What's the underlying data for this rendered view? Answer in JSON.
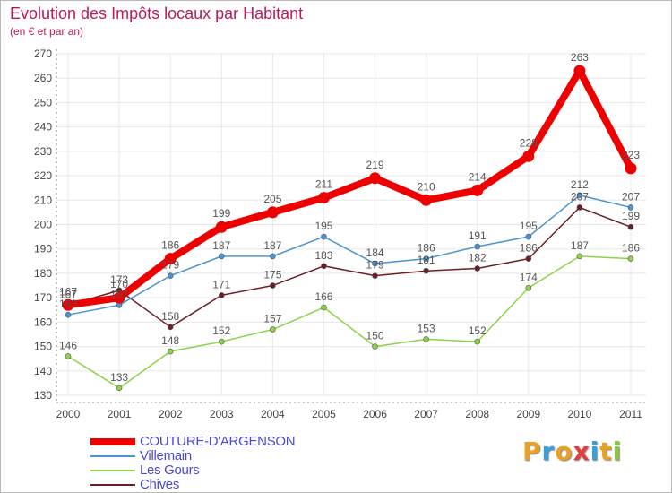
{
  "title": "Evolution des Impôts locaux par Habitant",
  "subtitle": "(en € et par an)",
  "logo": {
    "letters": [
      "P",
      "r",
      "o",
      "x",
      "i",
      "t",
      "i"
    ],
    "colors": [
      "#e8a025",
      "#3aa0dc",
      "#e8a025",
      "#e83d3d",
      "#3aa0dc",
      "#e8a025",
      "#8cc63e"
    ]
  },
  "chart_data": {
    "type": "line",
    "x": [
      2000,
      2001,
      2002,
      2003,
      2004,
      2005,
      2006,
      2007,
      2008,
      2009,
      2010,
      2011
    ],
    "ylim": [
      130,
      270
    ],
    "yticks": [
      130,
      140,
      150,
      160,
      170,
      180,
      190,
      200,
      210,
      220,
      230,
      240,
      250,
      260,
      270
    ],
    "grid": true,
    "legend_position": "bottom-left",
    "series": [
      {
        "name": "Chives",
        "color": "#6b1f24",
        "values": [
          167,
          173,
          158,
          171,
          175,
          183,
          179,
          181,
          182,
          186,
          207,
          199
        ]
      },
      {
        "name": "Les Gours",
        "color": "#8ed24a",
        "values": [
          146,
          133,
          148,
          152,
          157,
          166,
          150,
          153,
          152,
          174,
          187,
          186
        ]
      },
      {
        "name": "Villemain",
        "color": "#4b93d2",
        "values": [
          163,
          167,
          179,
          187,
          187,
          195,
          184,
          186,
          191,
          195,
          212,
          207
        ]
      },
      {
        "name": "COUTURE-D'ARGENSON",
        "color": "#ee0000",
        "values": [
          167,
          170,
          186,
          199,
          205,
          211,
          219,
          210,
          214,
          228,
          263,
          223
        ]
      }
    ],
    "legend_order": [
      "COUTURE-D'ARGENSON",
      "Villemain",
      "Les Gours",
      "Chives"
    ]
  }
}
